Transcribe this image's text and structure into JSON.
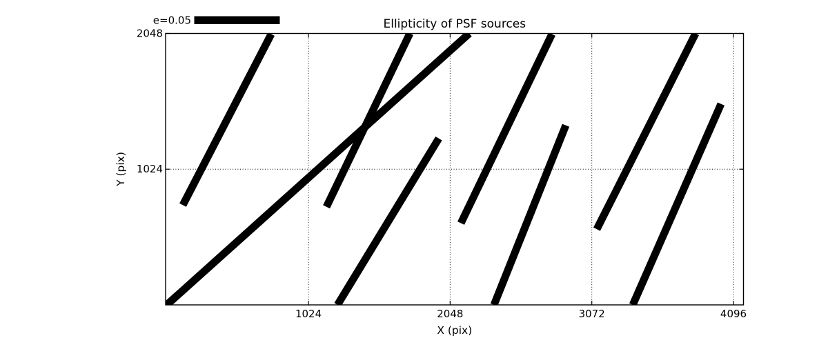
{
  "figure": {
    "background": "#ffffff",
    "line_color": "#000000"
  },
  "legend": {
    "label": "e=0.05"
  },
  "chart_data": {
    "type": "line",
    "subtype": "psf-ellipticity-whiskers",
    "title": "Ellipticity of PSF sources",
    "xlabel": "X (pix)",
    "ylabel": "Y (pix)",
    "xlim": [
      -10,
      4165
    ],
    "ylim": [
      0,
      2048
    ],
    "x_ticks": [
      1024,
      2048,
      3072,
      4096
    ],
    "y_ticks": [
      1024,
      2048
    ],
    "grid": "dotted",
    "legend_position": "top-left-outside",
    "legend_label": "e=0.05",
    "segments": [
      {
        "x1": 116,
        "y1": 753,
        "x2": 755,
        "y2": 2043
      },
      {
        "x1": 0,
        "y1": 0,
        "x2": 2186,
        "y2": 2048
      },
      {
        "x1": 1154,
        "y1": 740,
        "x2": 1757,
        "y2": 2048
      },
      {
        "x1": 1234,
        "y1": 0,
        "x2": 1966,
        "y2": 1256
      },
      {
        "x1": 2126,
        "y1": 617,
        "x2": 2784,
        "y2": 2043
      },
      {
        "x1": 2365,
        "y1": 0,
        "x2": 2884,
        "y2": 1355
      },
      {
        "x1": 3108,
        "y1": 571,
        "x2": 3822,
        "y2": 2048
      },
      {
        "x1": 3368,
        "y1": 0,
        "x2": 4006,
        "y2": 1516
      }
    ]
  }
}
